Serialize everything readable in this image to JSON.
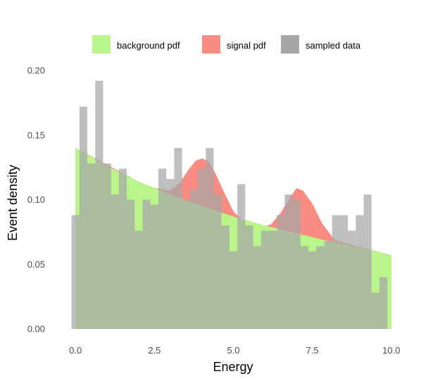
{
  "chart_data": {
    "type": "bar",
    "title": "",
    "xlabel": "Energy",
    "ylabel": "Event density",
    "xlim": [
      -0.25,
      10.25
    ],
    "ylim": [
      0,
      0.2
    ],
    "grid": false,
    "legend_position": "top",
    "x_ticks": [
      0.0,
      2.5,
      5.0,
      7.5,
      10.0
    ],
    "x_tick_labels": [
      "0.0",
      "2.5",
      "5.0",
      "7.5",
      "10.0"
    ],
    "y_ticks": [
      0.0,
      0.05,
      0.1,
      0.15,
      0.2
    ],
    "y_tick_labels": [
      "0.00",
      "0.05",
      "0.10",
      "0.15",
      "0.20"
    ],
    "series": [
      {
        "name": "background pdf",
        "kind": "area",
        "color": "#b9f58a",
        "x": [
          0.0,
          1.0,
          2.0,
          3.0,
          4.0,
          5.0,
          6.0,
          7.0,
          8.0,
          9.0,
          10.0
        ],
        "values": [
          0.14,
          0.126,
          0.114,
          0.104,
          0.095,
          0.087,
          0.08,
          0.074,
          0.068,
          0.063,
          0.057
        ]
      },
      {
        "name": "signal pdf",
        "kind": "area",
        "color": "#f88c82",
        "x": [
          0.0,
          2.0,
          2.5,
          3.0,
          3.3,
          3.6,
          3.8,
          4.0,
          4.2,
          4.4,
          4.7,
          5.0,
          5.4,
          5.8,
          6.2,
          6.5,
          6.8,
          7.0,
          7.2,
          7.5,
          7.8,
          8.2,
          8.6,
          10.0
        ],
        "values": [
          0.14,
          0.114,
          0.109,
          0.107,
          0.113,
          0.124,
          0.13,
          0.132,
          0.13,
          0.122,
          0.106,
          0.091,
          0.081,
          0.078,
          0.081,
          0.09,
          0.102,
          0.109,
          0.107,
          0.097,
          0.082,
          0.069,
          0.066,
          0.057
        ]
      },
      {
        "name": "sampled data",
        "kind": "histogram",
        "color": "#a6a6a6",
        "bin_start": -0.125,
        "bin_width": 0.25,
        "values": [
          0.088,
          0.172,
          0.128,
          0.192,
          0.128,
          0.104,
          0.124,
          0.1,
          0.076,
          0.1,
          0.096,
          0.124,
          0.116,
          0.14,
          0.1,
          0.108,
          0.124,
          0.14,
          0.104,
          0.08,
          0.06,
          0.112,
          0.08,
          0.064,
          0.076,
          0.076,
          0.088,
          0.104,
          0.1,
          0.064,
          0.06,
          0.064,
          0.068,
          0.088,
          0.088,
          0.076,
          0.088,
          0.104,
          0.028,
          0.04
        ]
      }
    ]
  }
}
